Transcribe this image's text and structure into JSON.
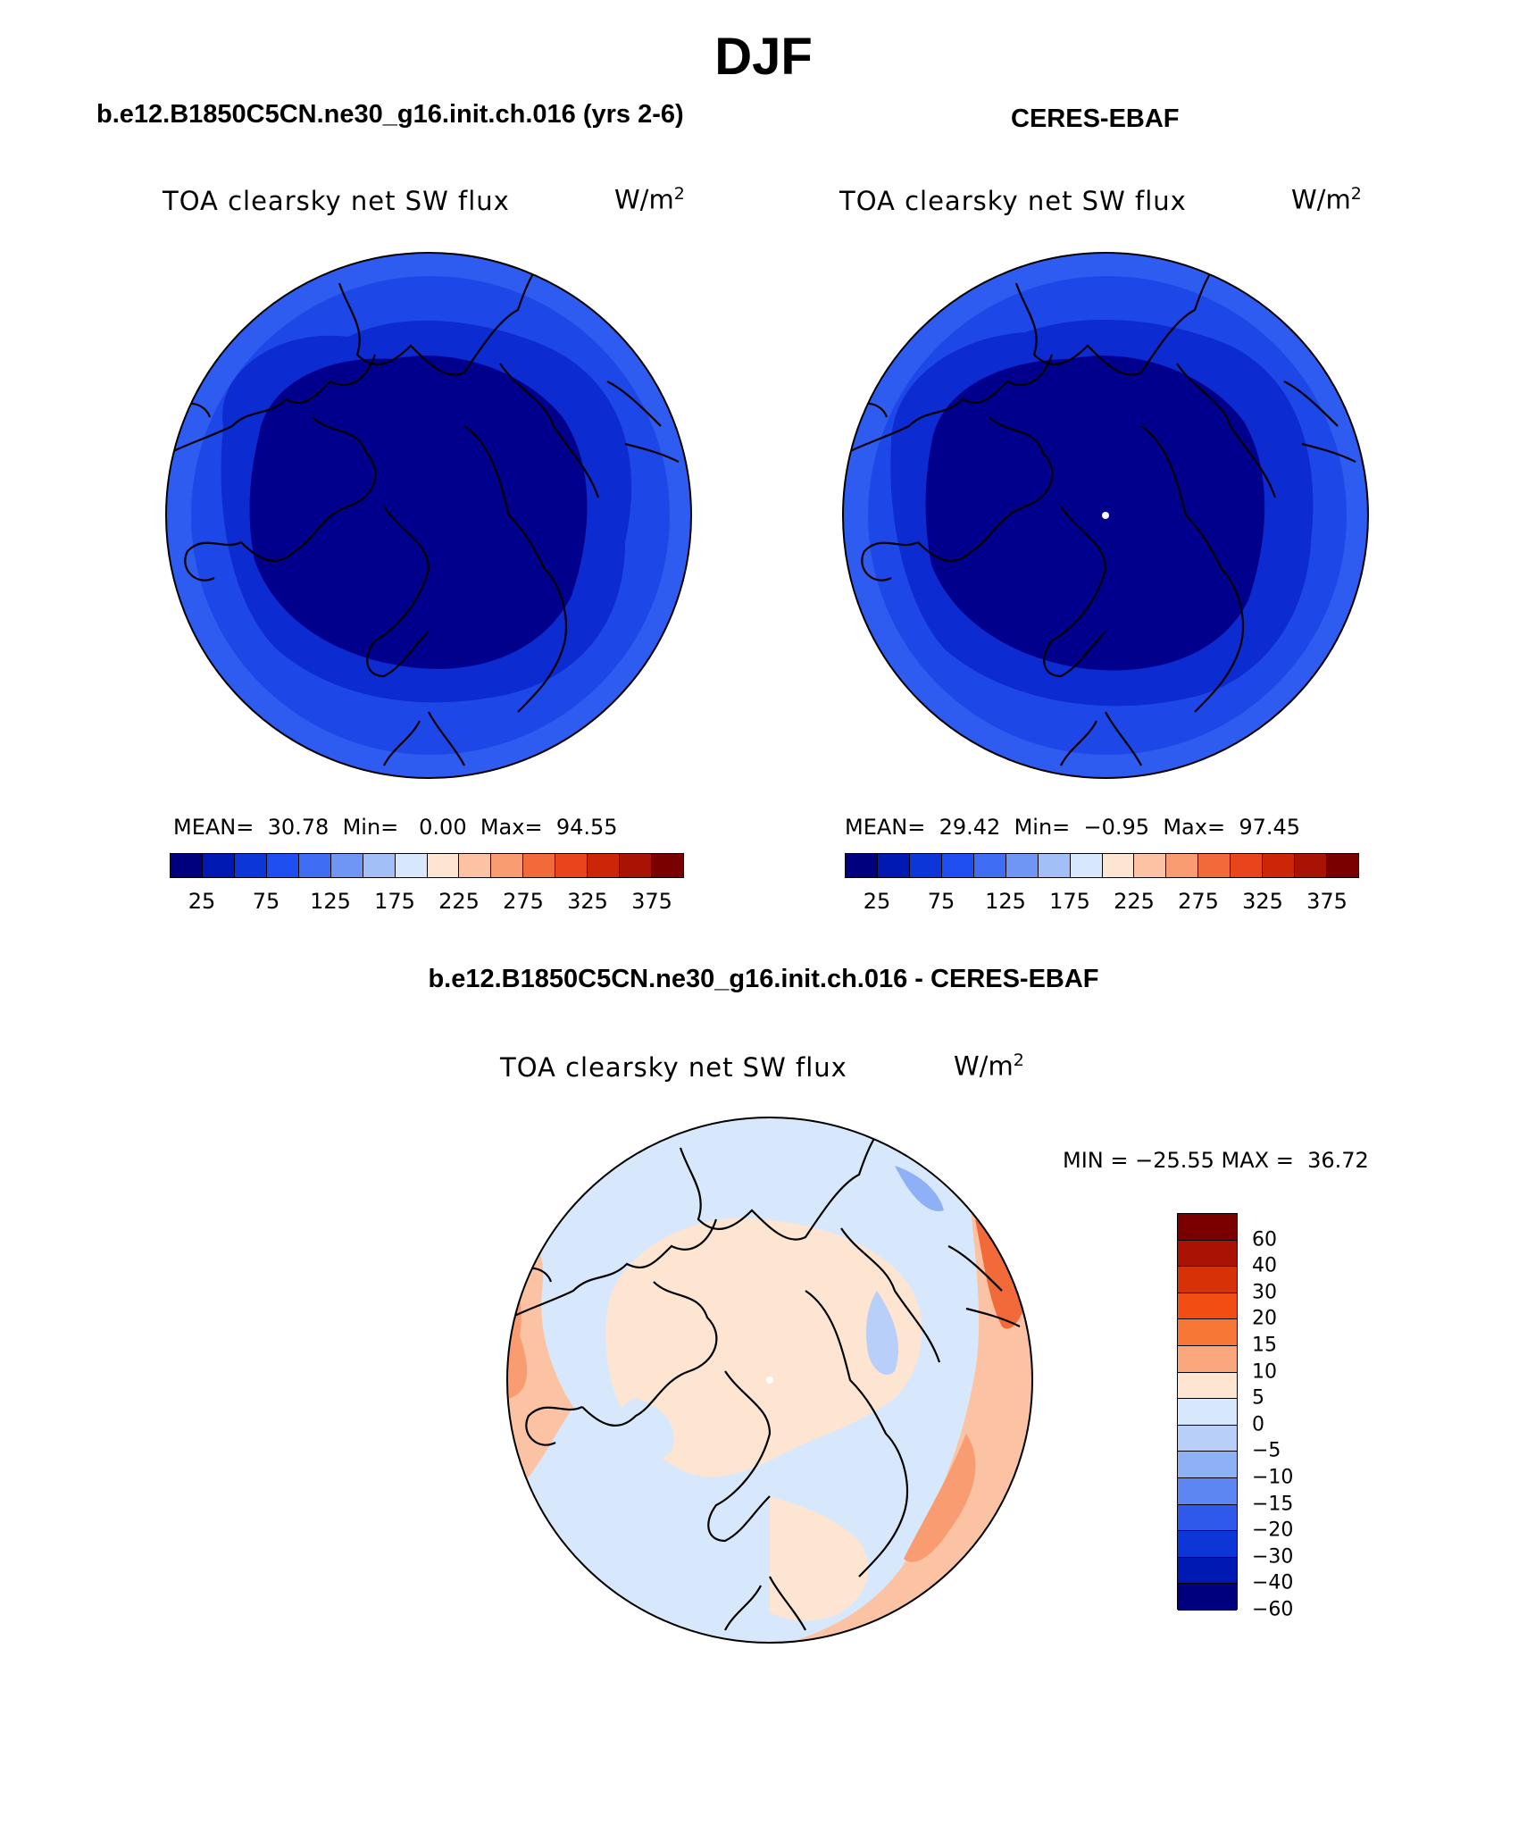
{
  "figure": {
    "season": "DJF"
  },
  "panels": {
    "model": {
      "title": "b.e12.B1850C5CN.ne30_g16.init.ch.016 (yrs 2-6)",
      "variable": "TOA clearsky net SW flux",
      "unit": "W/m",
      "unit_sup": "2",
      "stats": "MEAN=  30.78  Min=   0.00  Max=  94.55",
      "mean": 30.78,
      "min": 0.0,
      "max": 94.55
    },
    "obs": {
      "title": "CERES-EBAF",
      "variable": "TOA clearsky net SW flux",
      "unit": "W/m",
      "unit_sup": "2",
      "stats": "MEAN=  29.42  Min=  −0.95  Max=  97.45",
      "mean": 29.42,
      "min": -0.95,
      "max": 97.45
    },
    "diff": {
      "title": "b.e12.B1850C5CN.ne30_g16.init.ch.016 - CERES-EBAF",
      "variable": "TOA clearsky net SW flux",
      "unit": "W/m",
      "unit_sup": "2",
      "stats": "MIN = −25.55 MAX =  36.72",
      "min": -25.55,
      "max": 36.72
    }
  },
  "colorbars": {
    "abs": {
      "colors": [
        "#00007f",
        "#0019b3",
        "#0d36d9",
        "#1f4ff0",
        "#3f6ef5",
        "#6f95f5",
        "#a3bff8",
        "#d8e8fc",
        "#fde5d2",
        "#fbc3a3",
        "#f99c72",
        "#f26a3a",
        "#e8451c",
        "#cc2608",
        "#a81304",
        "#7a0000"
      ],
      "tick_labels": [
        "25",
        "75",
        "125",
        "175",
        "225",
        "275",
        "325",
        "375"
      ]
    },
    "diff": {
      "colors": [
        "#7a0000",
        "#a81304",
        "#d63207",
        "#f24d12",
        "#f77736",
        "#fba77d",
        "#fde5d2",
        "#d8e8fc",
        "#b7cff9",
        "#8eb0f5",
        "#5e86f2",
        "#2f59ea",
        "#0d36d9",
        "#0019b3",
        "#00007f"
      ],
      "tick_labels": [
        "60",
        "40",
        "30",
        "20",
        "15",
        "10",
        "5",
        "0",
        "−5",
        "−10",
        "−15",
        "−20",
        "−30",
        "−40",
        "−60"
      ]
    }
  },
  "map_colors": {
    "dark_blue": "#00008c",
    "mid_blue": "#0c2bd1",
    "light_blue_ring": "#1e47e8",
    "outer_blue": "#2f5cf0",
    "diff_pale_blue": "#d8e8fc",
    "diff_peach": "#fde5d2",
    "diff_salmon": "#fbc3a3",
    "diff_orange": "#f99c72",
    "diff_red": "#f26a3a"
  }
}
